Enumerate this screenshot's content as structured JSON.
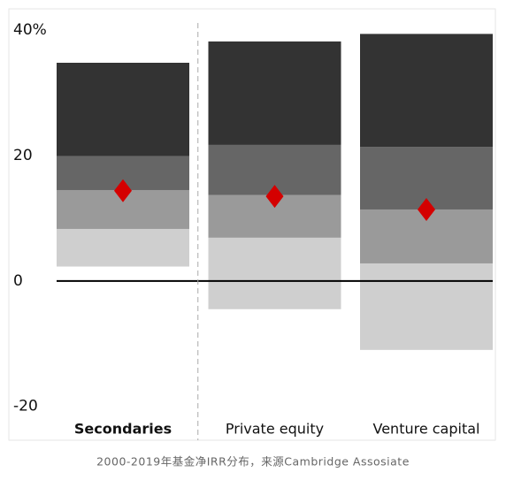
{
  "chart_data": {
    "type": "range_bar",
    "categories": [
      "Secondaries",
      "Private equity",
      "Venture capital"
    ],
    "bold_category": 0,
    "bounds": [
      [
        2.3,
        8.3,
        14.5,
        19.9,
        34.8
      ],
      [
        -4.5,
        6.9,
        13.7,
        21.7,
        38.2
      ],
      [
        -11,
        2.8,
        11.4,
        21.4,
        39.4
      ]
    ],
    "band_colors": [
      "#cfcfcf",
      "#9a9a9a",
      "#666666",
      "#333333"
    ],
    "markers": [
      14.4,
      13.5,
      11.4
    ],
    "marker_color": "#d40000",
    "ylim": [
      -25.4,
      43.4
    ],
    "yticks": [
      -20,
      0,
      20,
      {
        "value": 40,
        "label": "40%"
      }
    ],
    "divider_after": 0,
    "caption": "2000-2019年基金净IRR分布，来源Cambridge Assosiate"
  }
}
